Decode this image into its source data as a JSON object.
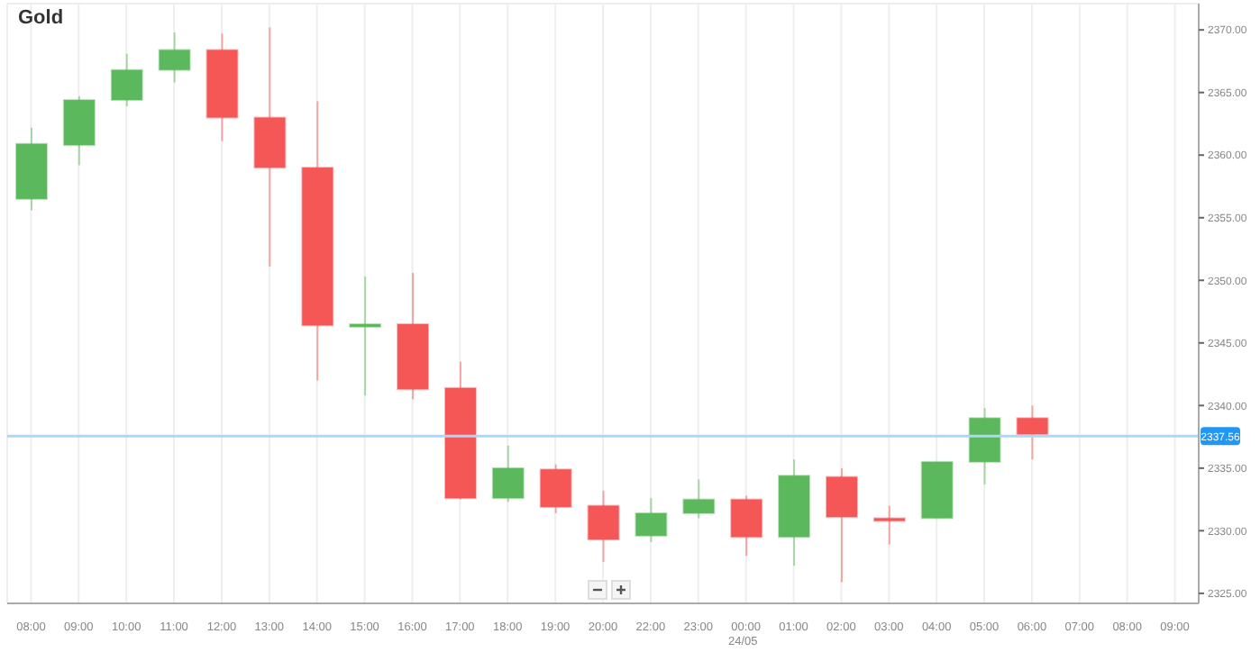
{
  "chart_data": {
    "type": "candlestick",
    "title": "Gold",
    "categories": [
      "08:00",
      "09:00",
      "10:00",
      "11:00",
      "12:00",
      "13:00",
      "14:00",
      "15:00",
      "16:00",
      "17:00",
      "18:00",
      "19:00",
      "20:00",
      "22:00",
      "23:00",
      "00:00",
      "01:00",
      "02:00",
      "03:00",
      "04:00",
      "05:00",
      "06:00",
      "07:00",
      "08:00",
      "09:00"
    ],
    "ohlc": [
      [
        2356.5,
        2362.2,
        2355.6,
        2360.9
      ],
      [
        2360.8,
        2364.7,
        2359.2,
        2364.4
      ],
      [
        2364.4,
        2368.1,
        2363.9,
        2366.8
      ],
      [
        2366.8,
        2369.8,
        2365.8,
        2368.4
      ],
      [
        2368.4,
        2369.7,
        2361.1,
        2363.0
      ],
      [
        2363.0,
        2370.2,
        2351.1,
        2359.0
      ],
      [
        2359.0,
        2364.3,
        2342.0,
        2346.4
      ],
      [
        2346.4,
        2350.3,
        2340.8,
        2346.5
      ],
      [
        2346.5,
        2350.6,
        2340.5,
        2341.3
      ],
      [
        2341.4,
        2343.5,
        2332.5,
        2332.6
      ],
      [
        2332.6,
        2336.8,
        2332.3,
        2335.0
      ],
      [
        2334.9,
        2335.3,
        2331.4,
        2331.9
      ],
      [
        2332.0,
        2333.2,
        2327.5,
        2329.3
      ],
      [
        2329.6,
        2332.6,
        2329.1,
        2331.4
      ],
      [
        2331.4,
        2334.1,
        2331.0,
        2332.5
      ],
      [
        2332.5,
        2332.8,
        2328.0,
        2329.5
      ],
      [
        2329.5,
        2335.7,
        2327.2,
        2334.4
      ],
      [
        2334.3,
        2335.0,
        2325.9,
        2331.1
      ],
      [
        2331.0,
        2332.0,
        2328.9,
        2330.9
      ],
      [
        2331.0,
        2335.5,
        2331.0,
        2335.5
      ],
      [
        2335.5,
        2339.8,
        2333.7,
        2339.0
      ],
      [
        2339.0,
        2340.0,
        2335.7,
        2337.7
      ],
      null,
      null,
      null
    ],
    "colors": [
      "#5cb85c",
      "#5cb85c",
      "#5cb85c",
      "#5cb85c",
      "#f55656",
      "#f55656",
      "#f55656",
      "#5cb85c",
      "#f55656",
      "#f55656",
      "#5cb85c",
      "#f55656",
      "#f55656",
      "#5cb85c",
      "#5cb85c",
      "#f55656",
      "#5cb85c",
      "#f55656",
      "#f55656",
      "#5cb85c",
      "#5cb85c",
      "#f55656",
      null,
      null,
      null
    ],
    "ylim": [
      2324.2,
      2372.1
    ],
    "yticks": [
      {
        "value": 2325,
        "label": "2325.00"
      },
      {
        "value": 2330,
        "label": "2330.00"
      },
      {
        "value": 2335,
        "label": "2335.00"
      },
      {
        "value": 2340,
        "label": "2340.00"
      },
      {
        "value": 2345,
        "label": "2345.00"
      },
      {
        "value": 2350,
        "label": "2350.00"
      },
      {
        "value": 2355,
        "label": "2355.00"
      },
      {
        "value": 2360,
        "label": "2360.00"
      },
      {
        "value": 2365,
        "label": "2365.00"
      },
      {
        "value": 2370,
        "label": "2370.00"
      }
    ],
    "ref_lines": [
      {
        "axis": "y",
        "value": 2337.56,
        "label": "2337.56",
        "color": "#aad8f5"
      }
    ],
    "annotations": [
      "24/05"
    ],
    "grid": true
  }
}
